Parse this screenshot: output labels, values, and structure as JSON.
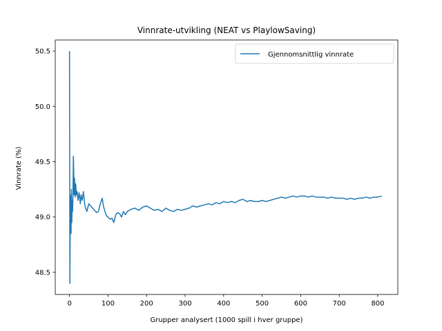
{
  "chart_data": {
    "type": "line",
    "title": "Vinnrate-utvikling (NEAT vs PlaylowSaving)",
    "xlabel": "Grupper analysert (1000 spill i hver gruppe)",
    "ylabel": "Vinnrate (%)",
    "xlim": [
      -37,
      852
    ],
    "ylim": [
      48.3,
      50.6
    ],
    "xticks": [
      0,
      100,
      200,
      300,
      400,
      500,
      600,
      700,
      800
    ],
    "yticks": [
      48.5,
      49.0,
      49.5,
      50.0,
      50.5
    ],
    "ytick_labels": [
      "48.5",
      "49.0",
      "49.5",
      "50.0",
      "50.5"
    ],
    "grid": false,
    "legend_position": "top-right",
    "series": [
      {
        "name": "Gjennomsnittlig vinnrate",
        "color": "#1f77b4",
        "x": [
          0,
          1,
          2,
          3,
          4,
          5,
          6,
          7,
          8,
          9,
          10,
          11,
          12,
          13,
          14,
          15,
          16,
          18,
          20,
          22,
          25,
          28,
          30,
          33,
          36,
          40,
          45,
          50,
          55,
          60,
          65,
          70,
          75,
          80,
          85,
          88,
          92,
          96,
          100,
          105,
          110,
          115,
          120,
          125,
          130,
          135,
          140,
          145,
          150,
          160,
          170,
          180,
          190,
          200,
          210,
          220,
          230,
          240,
          250,
          260,
          270,
          280,
          290,
          300,
          310,
          320,
          330,
          340,
          350,
          360,
          370,
          380,
          390,
          400,
          410,
          420,
          430,
          440,
          450,
          460,
          470,
          480,
          490,
          500,
          510,
          520,
          530,
          540,
          550,
          560,
          570,
          580,
          590,
          600,
          610,
          620,
          630,
          640,
          650,
          660,
          670,
          680,
          690,
          700,
          710,
          720,
          730,
          740,
          750,
          760,
          770,
          780,
          790,
          800,
          810
        ],
        "y": [
          50.5,
          48.4,
          49.1,
          49.2,
          48.85,
          49.25,
          48.95,
          49.15,
          49.05,
          49.2,
          49.55,
          49.4,
          49.2,
          49.35,
          49.25,
          49.18,
          49.3,
          49.2,
          49.23,
          49.15,
          49.22,
          49.12,
          49.2,
          49.15,
          49.23,
          49.1,
          49.05,
          49.12,
          49.1,
          49.08,
          49.06,
          49.04,
          49.05,
          49.12,
          49.17,
          49.1,
          49.05,
          49.01,
          49.0,
          48.98,
          48.99,
          48.95,
          49.02,
          49.04,
          49.03,
          49.0,
          49.05,
          49.02,
          49.05,
          49.07,
          49.08,
          49.06,
          49.09,
          49.1,
          49.08,
          49.06,
          49.07,
          49.05,
          49.08,
          49.06,
          49.05,
          49.07,
          49.06,
          49.07,
          49.08,
          49.1,
          49.09,
          49.1,
          49.11,
          49.12,
          49.11,
          49.13,
          49.12,
          49.14,
          49.13,
          49.14,
          49.13,
          49.15,
          49.16,
          49.14,
          49.15,
          49.14,
          49.14,
          49.15,
          49.14,
          49.15,
          49.16,
          49.17,
          49.18,
          49.17,
          49.18,
          49.19,
          49.18,
          49.19,
          49.19,
          49.18,
          49.19,
          49.18,
          49.18,
          49.18,
          49.17,
          49.18,
          49.17,
          49.17,
          49.17,
          49.16,
          49.17,
          49.16,
          49.17,
          49.17,
          49.18,
          49.17,
          49.18,
          49.18,
          49.19
        ]
      }
    ]
  }
}
